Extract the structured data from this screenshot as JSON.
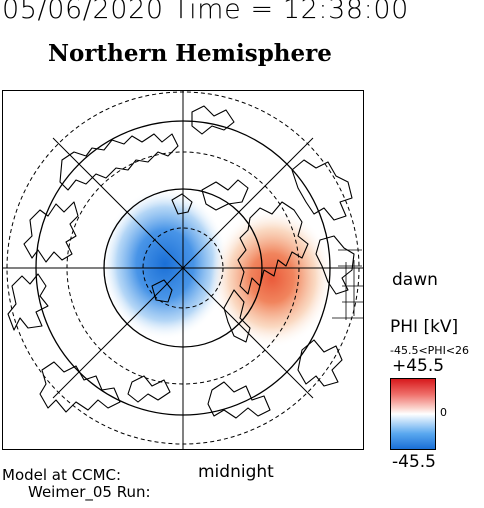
{
  "header": {
    "datetime": "05/06/2020 Time = 12:38:00",
    "title": "Northern Hemisphere"
  },
  "map": {
    "dawn_label": "dawn",
    "midnight_label": "midnight"
  },
  "colorbar": {
    "title": "PHI [kV]",
    "range": "-45.5<PHI<26",
    "max_label": "+45.5",
    "zero_label": "0",
    "min_label": "-45.5",
    "colors": {
      "max": "#d7191c",
      "zero": "#ffffff",
      "min": "#1a6fd6"
    }
  },
  "footer": {
    "credit_line1": "Model at CCMC:",
    "credit_line2": "Weimer_05 Run:"
  }
}
